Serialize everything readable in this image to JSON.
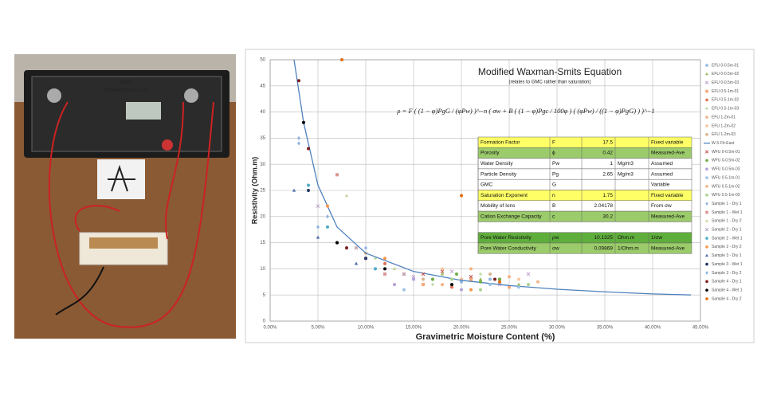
{
  "photo": {
    "labels": [
      "ABEM",
      "TERRAMETER SAS 300C"
    ]
  },
  "chart_data": {
    "type": "scatter",
    "title": "Modified Waxman-Smits Equation",
    "subtitle": "(relates to GMC rather than saturation)",
    "equation": "ρ = F ( (1 − φ)PgG / (φPw) )^−n ( σw + B ( (1 − φ)Pgc / 100φ ) ( (φPw) / ((1 − φ)PgG) ) )^−1",
    "x_label": "Gravimetric Moisture Content (%)",
    "y_label": "Resistivity (Ohm.m)",
    "xlim": [
      0,
      45
    ],
    "ylim": [
      0,
      50
    ],
    "xticks": [
      {
        "value": 0,
        "label": "0.00%"
      },
      {
        "value": 5,
        "label": "5.00%"
      },
      {
        "value": 10,
        "label": "10.00%"
      },
      {
        "value": 15,
        "label": "15.00%"
      },
      {
        "value": 20,
        "label": "20.00%"
      },
      {
        "value": 25,
        "label": "25.00%"
      },
      {
        "value": 30,
        "label": "30.00%"
      },
      {
        "value": 35,
        "label": "35.00%"
      },
      {
        "value": 40,
        "label": "40.00%"
      },
      {
        "value": 45,
        "label": "45.00%"
      }
    ],
    "yticks": [
      0,
      5,
      10,
      15,
      20,
      25,
      30,
      35,
      40,
      45,
      50
    ],
    "grid": true,
    "legend": "right",
    "series": [
      {
        "name": "EFU 0-0.5m-01",
        "color": "#8fb5e0",
        "marker": "circle",
        "x": [
          14,
          17,
          20,
          23
        ],
        "y": [
          9,
          8,
          7.5,
          8
        ]
      },
      {
        "name": "EFU 0-0.5m-02",
        "color": "#9bbb59",
        "marker": "triangle",
        "x": [
          13,
          18,
          22,
          26
        ],
        "y": [
          10,
          9,
          8,
          7
        ]
      },
      {
        "name": "EFU 0-0.5m-03",
        "color": "#c0a0d0",
        "marker": "x",
        "x": [
          15,
          19,
          24,
          27
        ],
        "y": [
          8.5,
          9.5,
          7,
          9
        ]
      },
      {
        "name": "EFU 0.5-1m-01",
        "color": "#f5a87a",
        "marker": "square",
        "x": [
          16,
          21,
          25
        ],
        "y": [
          7,
          8,
          6.5
        ]
      },
      {
        "name": "EFU 0.5-1m-02",
        "color": "#e07050",
        "marker": "circle",
        "x": [
          12,
          19,
          24
        ],
        "y": [
          11,
          6.5,
          8
        ]
      },
      {
        "name": "EFU 0.5-1m-03",
        "color": "#a8d08d",
        "marker": "plus",
        "x": [
          11,
          17,
          22
        ],
        "y": [
          12,
          7,
          9
        ]
      },
      {
        "name": "EFU 1-2m-01",
        "color": "#f0b48c",
        "marker": "circle",
        "x": [
          14,
          20,
          28
        ],
        "y": [
          9,
          8,
          7.5
        ]
      },
      {
        "name": "EFU 1-2m-02",
        "color": "#f8c8a0",
        "marker": "circle",
        "x": [
          9,
          18,
          26
        ],
        "y": [
          14,
          10,
          8
        ]
      },
      {
        "name": "EFU 1-2m-03",
        "color": "#d9b38c",
        "marker": "circle",
        "x": [
          10,
          16,
          23
        ],
        "y": [
          13,
          8,
          9
        ]
      },
      {
        "name": "W-S Fit-East",
        "color": "#4f81bd",
        "marker": "line",
        "x": [
          2.5,
          3.5,
          5,
          7,
          10,
          15,
          20,
          25,
          30,
          35,
          40,
          44
        ],
        "y": [
          50,
          38,
          26,
          18,
          13,
          9.5,
          7.8,
          6.8,
          6.1,
          5.6,
          5.2,
          5
        ]
      },
      {
        "name": "WFU 0-0.5m-01",
        "color": "#c0504d",
        "marker": "x",
        "x": [
          16,
          18,
          21
        ],
        "y": [
          9,
          9.5,
          8.5
        ]
      },
      {
        "name": "WFU 0-0.5m-02",
        "color": "#70ad47",
        "marker": "circle",
        "x": [
          17,
          19.5,
          22,
          24
        ],
        "y": [
          8,
          9,
          7.5,
          8
        ]
      },
      {
        "name": "WFU 0-0.5m-03",
        "color": "#b4a0d8",
        "marker": "circle",
        "x": [
          13,
          15,
          20
        ],
        "y": [
          7,
          8,
          6
        ]
      },
      {
        "name": "WFU 0.5-1m-01",
        "color": "#9dc3e6",
        "marker": "circle",
        "x": [
          14,
          23,
          26
        ],
        "y": [
          6,
          7,
          6.5
        ]
      },
      {
        "name": "WFU 0.5-1m-02",
        "color": "#f4b183",
        "marker": "circle",
        "x": [
          18,
          21,
          25
        ],
        "y": [
          7,
          10,
          8.5
        ]
      },
      {
        "name": "WFU 0.5-1m-03",
        "color": "#a9d18e",
        "marker": "circle",
        "x": [
          19,
          22,
          27
        ],
        "y": [
          8,
          6,
          7
        ]
      },
      {
        "name": "Sample 1 - Dry 1",
        "color": "#95b3d7",
        "marker": "diamond",
        "x": [
          3,
          6,
          8
        ],
        "y": [
          35,
          20,
          14
        ]
      },
      {
        "name": "Sample 1 - Wet 1",
        "color": "#d99694",
        "marker": "square",
        "x": [
          7,
          10,
          12
        ],
        "y": [
          28,
          12,
          9
        ]
      },
      {
        "name": "Sample 1 - Dry 2",
        "color": "#c3d69b",
        "marker": "triangle",
        "x": [
          8,
          13,
          22
        ],
        "y": [
          24,
          10,
          21
        ]
      },
      {
        "name": "Sample 2 - Dry 1",
        "color": "#b3a2c7",
        "marker": "x",
        "x": [
          5,
          9,
          14
        ],
        "y": [
          22,
          14,
          9
        ]
      },
      {
        "name": "Sample 2 - Wet 1",
        "color": "#4bacc6",
        "marker": "circle",
        "x": [
          4,
          6,
          11
        ],
        "y": [
          26,
          18,
          10
        ]
      },
      {
        "name": "Sample 2 - Dry 2",
        "color": "#f79646",
        "marker": "circle",
        "x": [
          6,
          12,
          21
        ],
        "y": [
          22,
          12,
          6
        ]
      },
      {
        "name": "Sample 3 - Dry 1",
        "color": "#4f6ea8",
        "marker": "triangle",
        "x": [
          2.5,
          5,
          9
        ],
        "y": [
          25,
          16,
          11
        ]
      },
      {
        "name": "Sample 3 - Wet 1",
        "color": "#1f3864",
        "marker": "circle",
        "x": [
          4,
          7,
          10
        ],
        "y": [
          25,
          15,
          12
        ]
      },
      {
        "name": "Sample 3 - Dry 2",
        "color": "#8db3e2",
        "marker": "diamond",
        "x": [
          3,
          5,
          10
        ],
        "y": [
          34,
          18,
          14
        ]
      },
      {
        "name": "Sample 4 - Dry 1",
        "color": "#7f1d1d",
        "marker": "circle",
        "x": [
          3,
          4,
          8,
          23.5
        ],
        "y": [
          46,
          33,
          14,
          8
        ]
      },
      {
        "name": "Sample 4 - Wet 1",
        "color": "#000000",
        "marker": "circle",
        "x": [
          3.5,
          7,
          12,
          19
        ],
        "y": [
          38,
          15,
          10,
          7
        ]
      },
      {
        "name": "Sample 4 - Dry 2",
        "color": "#e46c0a",
        "marker": "circle",
        "x": [
          7.5,
          20,
          24
        ],
        "y": [
          50,
          24,
          7.5
        ]
      }
    ],
    "param_table": {
      "rows": [
        {
          "name": "Formation Factor",
          "symbol": "F",
          "value": 17.5,
          "note": "Fixed variable",
          "color": "#ffff66"
        },
        {
          "name": "Porosity",
          "symbol": "ϕ",
          "value": 0.42,
          "note": "Measured-Ave",
          "color": "#9bcb6a"
        },
        {
          "name": "Water Density",
          "symbol": "Pw",
          "value": 1,
          "unit": "Mg/m3",
          "note": "Assumed",
          "color": "#ffffff"
        },
        {
          "name": "Particle Density",
          "symbol": "Pg",
          "value": 2.65,
          "unit": "Mg/m3",
          "note": "Assumed",
          "color": "#ffffff"
        },
        {
          "name": "GMC",
          "symbol": "G",
          "note": "Variable",
          "color": "#ffffff"
        },
        {
          "name": "Saturation Exponent",
          "symbol": "n",
          "value": 1.75,
          "note": "Fixed variable",
          "color": "#ffff66"
        },
        {
          "name": "Mobility of Ions",
          "symbol": "B",
          "value": 2.04178,
          "note": "From σw",
          "color": "#ffffff"
        },
        {
          "name": "Cation Exchange Capacity",
          "symbol": "c",
          "value": 30.2,
          "note": "Measured-Ave",
          "color": "#9bcb6a"
        },
        {
          "name": "Pore Water Resistivity",
          "symbol": "ρw",
          "value": 10.1325,
          "unit": "Ohm.m",
          "note": "1/σw",
          "color": "#5fae3c"
        },
        {
          "name": "Pore Water Conductivity",
          "symbol": "σw",
          "value": 0.09869,
          "unit": "1/Ohm.m",
          "note": "Measured-Ave",
          "color": "#9bcb6a"
        }
      ]
    }
  }
}
